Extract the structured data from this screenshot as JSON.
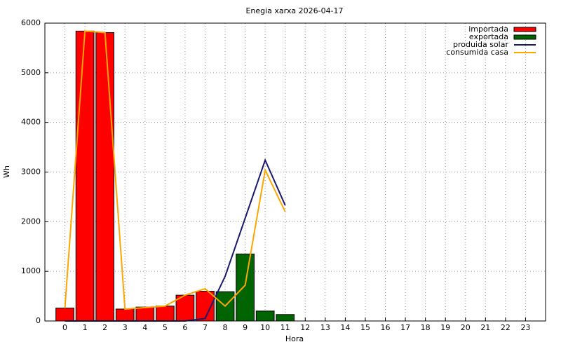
{
  "chart_data": {
    "type": "bar",
    "title": "Enegia xarxa 2026-04-17",
    "x_label": "Hora",
    "y_label": "Wh",
    "categories": [
      "0",
      "1",
      "2",
      "3",
      "4",
      "5",
      "6",
      "7",
      "8",
      "9",
      "10",
      "11",
      "12",
      "13",
      "14",
      "15",
      "16",
      "17",
      "18",
      "19",
      "20",
      "21",
      "22",
      "23"
    ],
    "ylim": [
      0,
      6000
    ],
    "yticks": [
      0,
      1000,
      2000,
      3000,
      4000,
      5000,
      6000
    ],
    "grid": true,
    "legend": "top-right",
    "series": [
      {
        "name": "importada",
        "type": "bar",
        "color": "#ff0000",
        "values": [
          260,
          5840,
          5810,
          240,
          280,
          300,
          520,
          600,
          null,
          null,
          null,
          null,
          null,
          null,
          null,
          null,
          null,
          null,
          null,
          null,
          null,
          null,
          null,
          null
        ]
      },
      {
        "name": "exportada",
        "type": "bar",
        "color": "#006400",
        "values": [
          null,
          null,
          null,
          null,
          null,
          null,
          null,
          null,
          590,
          1350,
          200,
          130,
          null,
          null,
          null,
          null,
          null,
          null,
          null,
          null,
          null,
          null,
          null,
          null
        ]
      },
      {
        "name": "produida solar",
        "type": "line",
        "color": "#191970",
        "values": [
          0,
          0,
          0,
          0,
          0,
          0,
          0,
          50,
          900,
          2070,
          3240,
          2330,
          null,
          null,
          null,
          null,
          null,
          null,
          null,
          null,
          null,
          null,
          null,
          null
        ]
      },
      {
        "name": "consumida casa",
        "type": "line",
        "color": "#ffa500",
        "values": [
          260,
          5840,
          5810,
          240,
          270,
          300,
          520,
          650,
          300,
          720,
          3040,
          2200,
          null,
          null,
          null,
          null,
          null,
          null,
          null,
          null,
          null,
          null,
          null,
          null
        ]
      }
    ]
  }
}
